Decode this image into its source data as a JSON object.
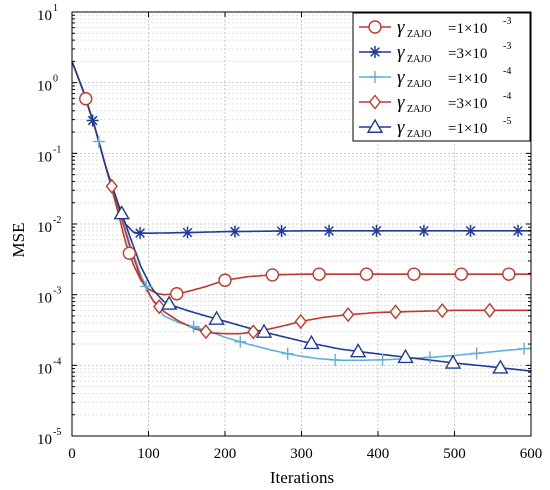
{
  "chart_data": {
    "type": "line",
    "title": "",
    "xlabel": "Iterations",
    "ylabel": "MSE",
    "xlim": [
      0,
      600
    ],
    "ylim": [
      1e-05,
      10
    ],
    "y_scale": "log",
    "grid": true,
    "minor_grid": true,
    "legend_position": "top-right",
    "x_ticks": [
      0,
      100,
      200,
      300,
      400,
      500,
      600
    ],
    "x_tick_labels": [
      "0",
      "100",
      "200",
      "300",
      "400",
      "500",
      "600"
    ],
    "y_ticks": [
      1e-05,
      0.0001,
      0.001,
      0.01,
      0.1,
      1,
      10
    ],
    "y_tick_labels": [
      {
        "base": "10",
        "exp": "-5"
      },
      {
        "base": "10",
        "exp": "-4"
      },
      {
        "base": "10",
        "exp": "-3"
      },
      {
        "base": "10",
        "exp": "-2"
      },
      {
        "base": "10",
        "exp": "-1"
      },
      {
        "base": "10",
        "exp": "0"
      },
      {
        "base": "10",
        "exp": "1"
      }
    ],
    "series": [
      {
        "legend": {
          "symbol": "γ",
          "sub": "ZAJO",
          "text": "=1×10",
          "exp": "-3"
        },
        "color": "#c0392b",
        "marker": "circle",
        "x": [
          0,
          15,
          30,
          45,
          60,
          70,
          80,
          90,
          100,
          110,
          120,
          135,
          150,
          175,
          200,
          230,
          260,
          300,
          350,
          400,
          450,
          500,
          550,
          600
        ],
        "y": [
          2.0,
          0.75,
          0.23,
          0.06,
          0.015,
          0.0055,
          0.0027,
          0.0016,
          0.0012,
          0.00105,
          0.001,
          0.00102,
          0.0011,
          0.0013,
          0.0016,
          0.0018,
          0.0019,
          0.00195,
          0.00195,
          0.00195,
          0.00195,
          0.00195,
          0.00195,
          0.00195
        ],
        "marker_x": [
          18,
          75,
          137,
          200,
          262,
          323,
          385,
          447,
          509,
          571
        ]
      },
      {
        "legend": {
          "symbol": "γ",
          "sub": "ZAJO",
          "text": "=3×10",
          "exp": "-3"
        },
        "color": "#1f3c99",
        "marker": "star",
        "x": [
          0,
          15,
          30,
          45,
          60,
          70,
          80,
          90,
          100,
          130,
          160,
          200,
          250,
          300,
          400,
          500,
          600
        ],
        "y": [
          2.0,
          0.75,
          0.23,
          0.06,
          0.018,
          0.01,
          0.0077,
          0.0074,
          0.0074,
          0.0075,
          0.0076,
          0.0078,
          0.0079,
          0.008,
          0.008,
          0.008,
          0.008
        ],
        "marker_x": [
          27,
          89,
          151,
          213,
          274,
          336,
          398,
          460,
          521,
          583
        ]
      },
      {
        "legend": {
          "symbol": "γ",
          "sub": "ZAJO",
          "text": "=1×10",
          "exp": "-4"
        },
        "color": "#5fb0dc",
        "marker": "plus",
        "x": [
          0,
          15,
          30,
          45,
          60,
          75,
          90,
          105,
          120,
          140,
          160,
          180,
          200,
          230,
          260,
          290,
          320,
          350,
          380,
          410,
          440,
          470,
          500,
          530,
          560,
          600
        ],
        "y": [
          2.0,
          0.75,
          0.23,
          0.06,
          0.018,
          0.0055,
          0.0019,
          0.00085,
          0.0005,
          0.0004,
          0.00035,
          0.0003,
          0.00025,
          0.0002,
          0.000165,
          0.00014,
          0.000125,
          0.000118,
          0.000118,
          0.00012,
          0.000125,
          0.00013,
          0.000138,
          0.000148,
          0.00016,
          0.000175
        ],
        "marker_x": [
          35,
          97,
          159,
          220,
          282,
          344,
          406,
          468,
          529,
          591
        ]
      },
      {
        "legend": {
          "symbol": "γ",
          "sub": "ZAJO",
          "text": "=3×10",
          "exp": "-4"
        },
        "color": "#c0392b",
        "marker": "diamond",
        "x": [
          0,
          15,
          30,
          45,
          60,
          75,
          90,
          105,
          120,
          140,
          160,
          180,
          200,
          220,
          240,
          260,
          280,
          300,
          330,
          360,
          400,
          450,
          500,
          550,
          600
        ],
        "y": [
          2.0,
          0.75,
          0.23,
          0.06,
          0.018,
          0.005,
          0.0017,
          0.00085,
          0.00058,
          0.00042,
          0.00033,
          0.00029,
          0.00028,
          0.00028,
          0.0003,
          0.00033,
          0.00037,
          0.00042,
          0.00048,
          0.00052,
          0.00056,
          0.00058,
          0.0006,
          0.0006,
          0.0006
        ],
        "marker_x": [
          52,
          114,
          175,
          237,
          299,
          361,
          423,
          484,
          546
        ]
      },
      {
        "legend": {
          "symbol": "γ",
          "sub": "ZAJO",
          "text": "=1×10",
          "exp": "-5"
        },
        "color": "#1f3c99",
        "marker": "triangle",
        "x": [
          0,
          15,
          30,
          45,
          60,
          75,
          90,
          105,
          120,
          135,
          150,
          175,
          200,
          230,
          260,
          300,
          350,
          400,
          450,
          500,
          550,
          600
        ],
        "y": [
          2.0,
          0.75,
          0.23,
          0.06,
          0.02,
          0.007,
          0.0025,
          0.0012,
          0.0008,
          0.00068,
          0.0006,
          0.0005,
          0.00042,
          0.00034,
          0.00028,
          0.00022,
          0.00017,
          0.000145,
          0.000125,
          0.000108,
          9.5e-05,
          8.3e-05
        ],
        "marker_x": [
          65,
          127,
          189,
          251,
          313,
          374,
          436,
          498,
          560
        ]
      }
    ]
  }
}
